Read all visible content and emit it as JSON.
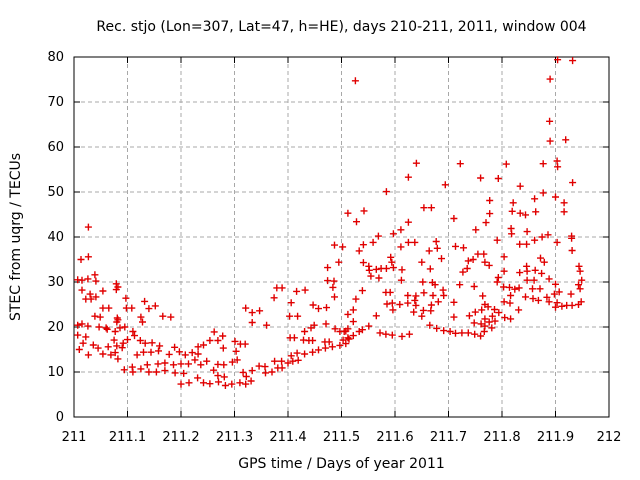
{
  "chart_data": {
    "type": "scatter",
    "title": "Rec. stjo (Lon=307, Lat=47, h=HE), days 210-211, 2011, window 004",
    "xlabel": "GPS time / Days of year 2011",
    "ylabel": "STEC from uqrg / TECUs",
    "xlim": [
      211,
      212
    ],
    "ylim": [
      0,
      80
    ],
    "xtick_labels": [
      "211",
      "211.1",
      "211.2",
      "211.3",
      "211.4",
      "211.5",
      "211.6",
      "211.7",
      "211.8",
      "211.9",
      "212"
    ],
    "xticks": [
      211,
      211.1,
      211.2,
      211.3,
      211.4,
      211.5,
      211.6,
      211.7,
      211.8,
      211.9,
      212
    ],
    "ytick_labels": [
      "0",
      "10",
      "20",
      "30",
      "40",
      "50",
      "60",
      "70",
      "80"
    ],
    "yticks": [
      0,
      10,
      20,
      30,
      40,
      50,
      60,
      70,
      80
    ],
    "grid": true,
    "legend": "none",
    "marker": "plus",
    "marker_color": "#e00000",
    "grid_color": "#a8a8a8",
    "axis_color": "#000000",
    "points": [
      [
        211.027,
        42.2
      ],
      [
        211.013,
        35.0
      ],
      [
        211.027,
        35.6
      ],
      [
        211.015,
        30.4
      ],
      [
        211.026,
        30.7
      ],
      [
        211.039,
        31.6
      ],
      [
        211.041,
        30.2
      ],
      [
        211.007,
        30.5
      ],
      [
        211.015,
        28.2
      ],
      [
        211.03,
        27.3
      ],
      [
        211.022,
        26.2
      ],
      [
        211.032,
        26.2
      ],
      [
        211.041,
        26.7
      ],
      [
        211.054,
        28.0
      ],
      [
        211.082,
        28.9
      ],
      [
        211.079,
        29.6
      ],
      [
        211.079,
        28.3
      ],
      [
        211.054,
        24.2
      ],
      [
        211.065,
        24.2
      ],
      [
        211.039,
        22.4
      ],
      [
        211.049,
        22.2
      ],
      [
        211.015,
        20.7
      ],
      [
        211.007,
        20.4
      ],
      [
        211.026,
        20.2
      ],
      [
        211.047,
        20.0
      ],
      [
        211.06,
        19.8
      ],
      [
        211.082,
        21.6
      ],
      [
        211.086,
        19.8
      ],
      [
        211.007,
        18.2
      ],
      [
        211.022,
        17.8
      ],
      [
        211.017,
        16.4
      ],
      [
        211.036,
        16.0
      ],
      [
        211.045,
        15.3
      ],
      [
        211.064,
        15.6
      ],
      [
        211.075,
        17.1
      ],
      [
        211.08,
        15.8
      ],
      [
        211.069,
        13.8
      ],
      [
        211.054,
        14.0
      ],
      [
        211.082,
        12.9
      ],
      [
        211.01,
        15.0
      ],
      [
        211.027,
        13.8
      ],
      [
        211.097,
        26.4
      ],
      [
        211.098,
        24.2
      ],
      [
        211.108,
        24.2
      ],
      [
        211.132,
        25.7
      ],
      [
        211.14,
        24.1
      ],
      [
        211.152,
        24.7
      ],
      [
        211.081,
        22.0
      ],
      [
        211.08,
        21.1
      ],
      [
        211.125,
        22.2
      ],
      [
        211.128,
        21.1
      ],
      [
        211.166,
        22.4
      ],
      [
        211.181,
        22.2
      ],
      [
        211.095,
        20.0
      ],
      [
        211.062,
        19.5
      ],
      [
        211.077,
        19.0
      ],
      [
        211.11,
        19.0
      ],
      [
        211.113,
        18.1
      ],
      [
        211.1,
        17.2
      ],
      [
        211.092,
        16.4
      ],
      [
        211.09,
        15.4
      ],
      [
        211.077,
        14.3
      ],
      [
        211.118,
        13.8
      ],
      [
        211.13,
        14.4
      ],
      [
        211.144,
        14.4
      ],
      [
        211.158,
        14.7
      ],
      [
        211.16,
        15.8
      ],
      [
        211.146,
        16.5
      ],
      [
        211.133,
        16.4
      ],
      [
        211.124,
        17.0
      ],
      [
        211.188,
        15.5
      ],
      [
        211.197,
        14.5
      ],
      [
        211.178,
        13.9
      ],
      [
        211.208,
        13.8
      ],
      [
        211.221,
        14.3
      ],
      [
        211.232,
        14.0
      ],
      [
        211.254,
        17.0
      ],
      [
        211.242,
        16.0
      ],
      [
        211.232,
        15.6
      ],
      [
        211.226,
        12.7
      ],
      [
        211.248,
        12.4
      ],
      [
        211.237,
        11.6
      ],
      [
        211.214,
        11.8
      ],
      [
        211.2,
        11.8
      ],
      [
        211.186,
        11.6
      ],
      [
        211.17,
        12.0
      ],
      [
        211.157,
        11.8
      ],
      [
        211.137,
        11.6
      ],
      [
        211.125,
        10.7
      ],
      [
        211.109,
        11.1
      ],
      [
        211.094,
        10.5
      ],
      [
        211.11,
        10.0
      ],
      [
        211.14,
        10.0
      ],
      [
        211.154,
        10.0
      ],
      [
        211.17,
        10.3
      ],
      [
        211.189,
        9.8
      ],
      [
        211.205,
        9.7
      ],
      [
        211.231,
        8.7
      ],
      [
        211.242,
        7.6
      ],
      [
        211.254,
        7.4
      ],
      [
        211.215,
        7.6
      ],
      [
        211.2,
        7.3
      ],
      [
        211.487,
        38.2
      ],
      [
        211.502,
        37.8
      ],
      [
        211.495,
        34.4
      ],
      [
        211.474,
        33.2
      ],
      [
        211.474,
        30.3
      ],
      [
        211.486,
        30.2
      ],
      [
        211.484,
        28.8
      ],
      [
        211.487,
        26.7
      ],
      [
        211.379,
        28.7
      ],
      [
        211.389,
        28.7
      ],
      [
        211.374,
        26.5
      ],
      [
        211.416,
        27.9
      ],
      [
        211.432,
        28.2
      ],
      [
        211.406,
        25.4
      ],
      [
        211.447,
        24.9
      ],
      [
        211.457,
        24.1
      ],
      [
        211.472,
        24.3
      ],
      [
        211.321,
        24.2
      ],
      [
        211.333,
        23.2
      ],
      [
        211.333,
        21.0
      ],
      [
        211.347,
        23.6
      ],
      [
        211.36,
        20.4
      ],
      [
        211.403,
        22.4
      ],
      [
        211.418,
        22.4
      ],
      [
        211.471,
        20.7
      ],
      [
        211.262,
        18.9
      ],
      [
        211.278,
        18.0
      ],
      [
        211.269,
        17.0
      ],
      [
        211.279,
        15.3
      ],
      [
        211.301,
        16.8
      ],
      [
        211.311,
        16.2
      ],
      [
        211.32,
        16.2
      ],
      [
        211.303,
        14.6
      ],
      [
        211.305,
        12.7
      ],
      [
        211.296,
        12.2
      ],
      [
        211.28,
        11.6
      ],
      [
        211.269,
        11.7
      ],
      [
        211.261,
        10.4
      ],
      [
        211.269,
        9.2
      ],
      [
        211.281,
        8.9
      ],
      [
        211.27,
        7.8
      ],
      [
        211.283,
        7.0
      ],
      [
        211.295,
        7.3
      ],
      [
        211.31,
        7.6
      ],
      [
        211.321,
        7.3
      ],
      [
        211.331,
        8.0
      ],
      [
        211.322,
        9.0
      ],
      [
        211.316,
        9.9
      ],
      [
        211.333,
        10.3
      ],
      [
        211.346,
        11.3
      ],
      [
        211.357,
        11.2
      ],
      [
        211.358,
        9.8
      ],
      [
        211.37,
        10.0
      ],
      [
        211.381,
        10.9
      ],
      [
        211.389,
        10.9
      ],
      [
        211.375,
        12.4
      ],
      [
        211.388,
        12.4
      ],
      [
        211.4,
        12.0
      ],
      [
        211.409,
        12.4
      ],
      [
        211.419,
        12.6
      ],
      [
        211.406,
        13.6
      ],
      [
        211.417,
        14.2
      ],
      [
        211.431,
        14.0
      ],
      [
        211.446,
        14.4
      ],
      [
        211.457,
        14.9
      ],
      [
        211.47,
        15.3
      ],
      [
        211.483,
        15.6
      ],
      [
        211.497,
        15.9
      ],
      [
        211.508,
        16.3
      ],
      [
        211.508,
        19.1
      ],
      [
        211.404,
        17.6
      ],
      [
        211.412,
        17.6
      ],
      [
        211.429,
        17.1
      ],
      [
        211.439,
        17.0
      ],
      [
        211.446,
        17.0
      ],
      [
        211.469,
        16.7
      ],
      [
        211.477,
        16.7
      ],
      [
        211.503,
        17.1
      ],
      [
        211.514,
        17.3
      ],
      [
        211.431,
        19.0
      ],
      [
        211.443,
        19.8
      ],
      [
        211.449,
        20.4
      ],
      [
        211.488,
        19.6
      ],
      [
        211.497,
        19.0
      ],
      [
        211.505,
        19.0
      ],
      [
        211.522,
        21.2
      ],
      [
        211.526,
        74.7
      ],
      [
        211.64,
        56.4
      ],
      [
        211.625,
        53.3
      ],
      [
        211.722,
        56.3
      ],
      [
        211.76,
        53.1
      ],
      [
        211.694,
        51.6
      ],
      [
        211.584,
        50.1
      ],
      [
        211.654,
        46.5
      ],
      [
        211.668,
        46.5
      ],
      [
        211.542,
        45.8
      ],
      [
        211.512,
        45.3
      ],
      [
        211.71,
        44.1
      ],
      [
        211.528,
        43.4
      ],
      [
        211.625,
        43.3
      ],
      [
        211.751,
        41.6
      ],
      [
        211.611,
        41.6
      ],
      [
        211.597,
        40.7
      ],
      [
        211.569,
        40.2
      ],
      [
        211.533,
        36.9
      ],
      [
        211.541,
        38.3
      ],
      [
        211.559,
        38.8
      ],
      [
        211.592,
        35.5
      ],
      [
        211.594,
        34.4
      ],
      [
        211.597,
        33.2
      ],
      [
        211.584,
        33.0
      ],
      [
        211.551,
        33.5
      ],
      [
        211.552,
        32.6
      ],
      [
        211.565,
        32.8
      ],
      [
        211.574,
        33.0
      ],
      [
        211.541,
        34.3
      ],
      [
        211.57,
        30.9
      ],
      [
        211.555,
        31.3
      ],
      [
        211.613,
        32.7
      ],
      [
        211.612,
        30.4
      ],
      [
        211.611,
        37.8
      ],
      [
        211.625,
        38.8
      ],
      [
        211.637,
        38.8
      ],
      [
        211.664,
        36.9
      ],
      [
        211.677,
        39.0
      ],
      [
        211.679,
        37.5
      ],
      [
        211.65,
        34.4
      ],
      [
        211.666,
        32.9
      ],
      [
        211.687,
        35.2
      ],
      [
        211.713,
        37.9
      ],
      [
        211.728,
        37.6
      ],
      [
        211.737,
        34.7
      ],
      [
        211.746,
        35.0
      ],
      [
        211.735,
        33.0
      ],
      [
        211.727,
        32.2
      ],
      [
        211.755,
        36.2
      ],
      [
        211.766,
        36.2
      ],
      [
        211.721,
        29.4
      ],
      [
        211.748,
        29.0
      ],
      [
        211.652,
        30.0
      ],
      [
        211.67,
        29.9
      ],
      [
        211.675,
        29.4
      ],
      [
        211.654,
        27.6
      ],
      [
        211.671,
        27.0
      ],
      [
        211.539,
        28.1
      ],
      [
        211.583,
        27.7
      ],
      [
        211.591,
        27.7
      ],
      [
        211.585,
        25.1
      ],
      [
        211.595,
        25.3
      ],
      [
        211.596,
        23.8
      ],
      [
        211.609,
        25.0
      ],
      [
        211.624,
        27.0
      ],
      [
        211.624,
        25.3
      ],
      [
        211.639,
        26.9
      ],
      [
        211.637,
        25.9
      ],
      [
        211.639,
        24.8
      ],
      [
        211.635,
        23.3
      ],
      [
        211.65,
        22.4
      ],
      [
        211.653,
        23.7
      ],
      [
        211.668,
        24.9
      ],
      [
        211.667,
        23.6
      ],
      [
        211.681,
        25.6
      ],
      [
        211.691,
        27.0
      ],
      [
        211.69,
        28.2
      ],
      [
        211.527,
        26.2
      ],
      [
        211.522,
        23.8
      ],
      [
        211.512,
        22.8
      ],
      [
        211.565,
        22.5
      ],
      [
        211.551,
        20.2
      ],
      [
        211.539,
        19.4
      ],
      [
        211.533,
        19.0
      ],
      [
        211.522,
        18.1
      ],
      [
        211.512,
        19.6
      ],
      [
        211.512,
        17.6
      ],
      [
        211.572,
        18.7
      ],
      [
        211.583,
        18.4
      ],
      [
        211.595,
        18.2
      ],
      [
        211.613,
        17.9
      ],
      [
        211.627,
        18.4
      ],
      [
        211.665,
        20.4
      ],
      [
        211.678,
        19.7
      ],
      [
        211.691,
        19.2
      ],
      [
        211.703,
        19.0
      ],
      [
        211.713,
        18.6
      ],
      [
        211.725,
        18.7
      ],
      [
        211.737,
        18.7
      ],
      [
        211.749,
        18.4
      ],
      [
        211.76,
        18.0
      ],
      [
        211.767,
        19.0
      ],
      [
        211.71,
        25.5
      ],
      [
        211.71,
        22.2
      ],
      [
        211.739,
        22.5
      ],
      [
        211.75,
        23.3
      ],
      [
        211.762,
        23.8
      ],
      [
        211.748,
        20.9
      ],
      [
        211.761,
        20.7
      ],
      [
        211.764,
        26.9
      ],
      [
        211.904,
        79.4
      ],
      [
        211.932,
        79.2
      ],
      [
        211.89,
        75.1
      ],
      [
        211.889,
        65.7
      ],
      [
        211.89,
        61.3
      ],
      [
        211.919,
        61.6
      ],
      [
        211.808,
        56.2
      ],
      [
        211.877,
        56.3
      ],
      [
        211.903,
        56.9
      ],
      [
        211.904,
        55.6
      ],
      [
        211.793,
        53.0
      ],
      [
        211.834,
        51.3
      ],
      [
        211.932,
        52.1
      ],
      [
        211.877,
        49.8
      ],
      [
        211.861,
        48.5
      ],
      [
        211.9,
        48.9
      ],
      [
        211.777,
        48.1
      ],
      [
        211.916,
        47.6
      ],
      [
        211.821,
        47.6
      ],
      [
        211.819,
        45.7
      ],
      [
        211.834,
        45.3
      ],
      [
        211.863,
        45.6
      ],
      [
        211.844,
        44.9
      ],
      [
        211.777,
        45.2
      ],
      [
        211.916,
        45.6
      ],
      [
        211.77,
        43.2
      ],
      [
        211.817,
        41.9
      ],
      [
        211.818,
        40.7
      ],
      [
        211.847,
        41.2
      ],
      [
        211.886,
        40.5
      ],
      [
        211.93,
        40.2
      ],
      [
        211.791,
        39.3
      ],
      [
        211.833,
        38.4
      ],
      [
        211.846,
        38.4
      ],
      [
        211.861,
        39.3
      ],
      [
        211.875,
        40.0
      ],
      [
        211.903,
        38.8
      ],
      [
        211.93,
        39.7
      ],
      [
        211.931,
        37.0
      ],
      [
        211.804,
        35.6
      ],
      [
        211.776,
        33.7
      ],
      [
        211.768,
        34.4
      ],
      [
        211.804,
        32.4
      ],
      [
        211.793,
        31.0
      ],
      [
        211.791,
        30.0
      ],
      [
        211.833,
        32.1
      ],
      [
        211.846,
        33.5
      ],
      [
        211.847,
        32.4
      ],
      [
        211.862,
        32.6
      ],
      [
        211.847,
        30.4
      ],
      [
        211.86,
        30.4
      ],
      [
        211.872,
        35.3
      ],
      [
        211.879,
        34.4
      ],
      [
        211.874,
        31.9
      ],
      [
        211.888,
        30.7
      ],
      [
        211.9,
        29.5
      ],
      [
        211.944,
        33.5
      ],
      [
        211.946,
        32.4
      ],
      [
        211.949,
        30.4
      ],
      [
        211.943,
        29.4
      ],
      [
        211.946,
        28.5
      ],
      [
        211.803,
        28.9
      ],
      [
        211.814,
        28.8
      ],
      [
        211.824,
        28.4
      ],
      [
        211.832,
        28.7
      ],
      [
        211.816,
        27.0
      ],
      [
        211.804,
        25.6
      ],
      [
        211.815,
        25.3
      ],
      [
        211.831,
        23.8
      ],
      [
        211.857,
        28.5
      ],
      [
        211.871,
        28.5
      ],
      [
        211.844,
        26.7
      ],
      [
        211.858,
        26.3
      ],
      [
        211.868,
        25.9
      ],
      [
        211.884,
        26.6
      ],
      [
        211.888,
        25.6
      ],
      [
        211.898,
        27.3
      ],
      [
        211.907,
        27.8
      ],
      [
        211.929,
        27.3
      ],
      [
        211.903,
        25.4
      ],
      [
        211.9,
        24.4
      ],
      [
        211.912,
        24.6
      ],
      [
        211.921,
        24.8
      ],
      [
        211.931,
        24.8
      ],
      [
        211.943,
        25.0
      ],
      [
        211.948,
        25.6
      ],
      [
        211.768,
        25.0
      ],
      [
        211.774,
        24.5
      ],
      [
        211.786,
        23.9
      ],
      [
        211.794,
        23.2
      ],
      [
        211.782,
        22.4
      ],
      [
        211.768,
        21.8
      ],
      [
        211.776,
        21.1
      ],
      [
        211.787,
        21.3
      ],
      [
        211.805,
        22.1
      ],
      [
        211.816,
        21.8
      ],
      [
        211.768,
        20.2
      ],
      [
        211.781,
        19.8
      ]
    ]
  }
}
